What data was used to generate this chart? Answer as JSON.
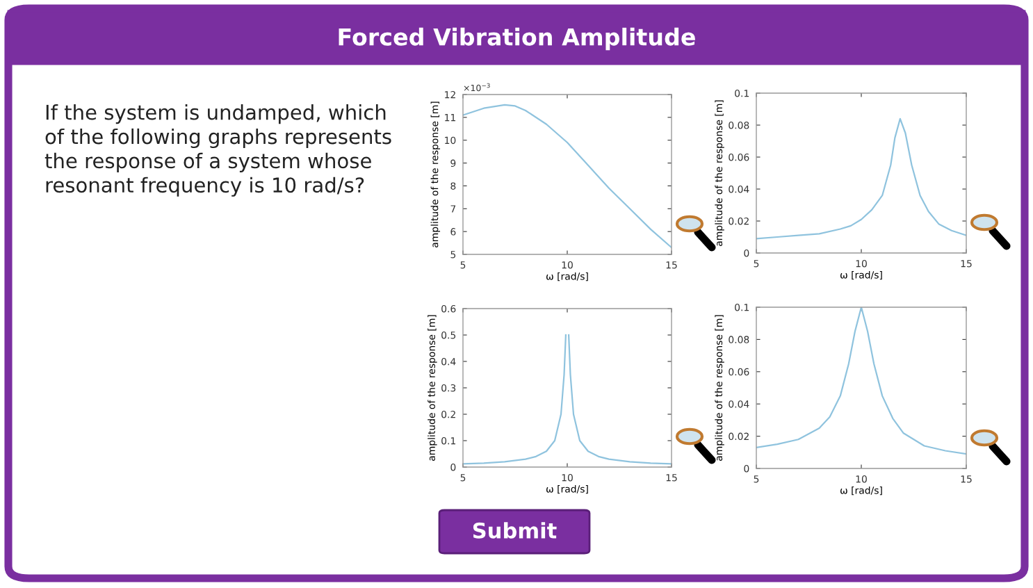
{
  "chart_data": [
    {
      "type": "other",
      "title": "Forced Vibration Amplitude",
      "annotations": [
        "If the system is undamped, which of the following graphs represents the response of a system whose resonant frequency is 10 rad/s?",
        "Submit"
      ]
    },
    {
      "type": "line",
      "xlabel": "ω [rad/s]",
      "ylabel": "amplitude of the response [m]",
      "x": [
        5,
        6,
        7,
        7.5,
        8,
        9,
        10,
        11,
        12,
        13,
        14,
        15
      ],
      "series": [
        {
          "color": "#8fc3de",
          "values": [
            11.1,
            11.4,
            11.55,
            11.5,
            11.3,
            10.7,
            9.9,
            8.9,
            7.9,
            7.0,
            6.1,
            5.3
          ]
        }
      ],
      "xlim": [
        5,
        15
      ],
      "xticks": [
        5,
        10,
        15
      ],
      "ylim": [
        5,
        12
      ],
      "yticks": [
        5,
        6,
        7,
        8,
        9,
        10,
        11,
        12
      ],
      "annotations": [
        "×10$^{−3}$"
      ]
    },
    {
      "type": "line",
      "xlabel": "ω [rad/s]",
      "ylabel": "amplitude of the response [m]",
      "x": [
        5,
        6,
        7,
        8,
        9,
        9.5,
        10,
        10.5,
        11,
        11.4,
        11.6,
        11.85,
        12.1,
        12.4,
        12.8,
        13.2,
        13.7,
        14.3,
        15
      ],
      "series": [
        {
          "color": "#8fc3de",
          "values": [
            0.009,
            0.01,
            0.011,
            0.012,
            0.015,
            0.017,
            0.021,
            0.027,
            0.036,
            0.055,
            0.072,
            0.084,
            0.075,
            0.055,
            0.036,
            0.026,
            0.018,
            0.014,
            0.011
          ]
        }
      ],
      "xlim": [
        5,
        15
      ],
      "xticks": [
        5,
        10,
        15
      ],
      "ylim": [
        0,
        0.1
      ],
      "yticks": [
        0,
        0.02,
        0.04,
        0.06,
        0.08,
        0.1
      ]
    },
    {
      "type": "line",
      "xlabel": "ω [rad/s]",
      "ylabel": "amplitude of the response [m]",
      "x": [
        5,
        6,
        7,
        8,
        8.5,
        9,
        9.4,
        9.7,
        9.85,
        9.93,
        10,
        10.07,
        10.15,
        10.3,
        10.6,
        11,
        11.5,
        12,
        13,
        14,
        15
      ],
      "series": [
        {
          "color": "#8fc3de",
          "values": [
            0.012,
            0.015,
            0.02,
            0.03,
            0.04,
            0.06,
            0.1,
            0.2,
            0.35,
            0.5,
            null,
            0.5,
            0.35,
            0.2,
            0.1,
            0.06,
            0.04,
            0.03,
            0.02,
            0.015,
            0.012
          ]
        }
      ],
      "xlim": [
        5,
        15
      ],
      "xticks": [
        5,
        10,
        15
      ],
      "ylim": [
        0,
        0.6
      ],
      "yticks": [
        0,
        0.1,
        0.2,
        0.3,
        0.4,
        0.5,
        0.6
      ]
    },
    {
      "type": "line",
      "xlabel": "ω [rad/s]",
      "ylabel": "amplitude of the response [m]",
      "x": [
        5,
        6,
        7,
        8,
        8.5,
        9,
        9.4,
        9.7,
        10,
        10.3,
        10.6,
        11,
        11.5,
        12,
        13,
        14,
        15
      ],
      "series": [
        {
          "color": "#8fc3de",
          "values": [
            0.013,
            0.015,
            0.018,
            0.025,
            0.032,
            0.045,
            0.065,
            0.085,
            0.1,
            0.085,
            0.065,
            0.045,
            0.031,
            0.022,
            0.014,
            0.011,
            0.009
          ]
        }
      ],
      "xlim": [
        5,
        15
      ],
      "xticks": [
        5,
        10,
        15
      ],
      "ylim": [
        0,
        0.1
      ],
      "yticks": [
        0,
        0.02,
        0.04,
        0.06,
        0.08,
        0.1
      ]
    }
  ]
}
